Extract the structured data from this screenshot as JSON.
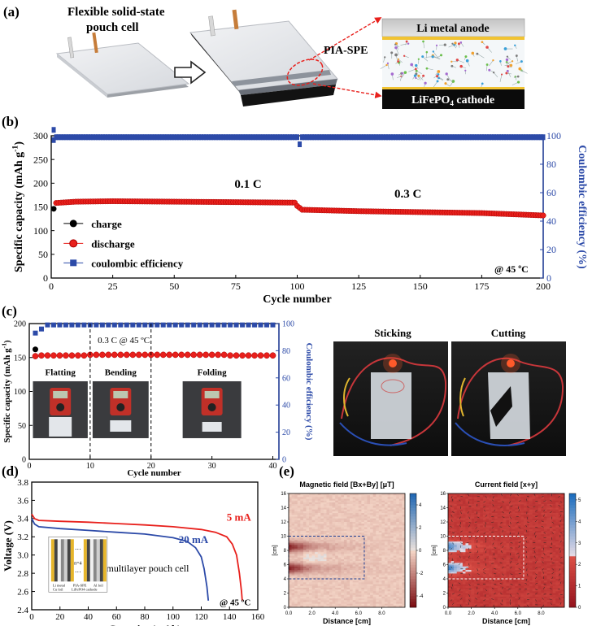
{
  "panel_labels": {
    "a": "(a)",
    "b": "(b)",
    "c": "(c)",
    "d": "(d)",
    "e": "(e)"
  },
  "panel_a": {
    "cell_label_line1": "Flexible solid-state",
    "cell_label_line2": "pouch cell",
    "pia_spe": "PIA-SPE",
    "anode": "Li metal anode",
    "cathode_prefix": "LiFePO",
    "cathode_sub": "4",
    "cathode_suffix": " cathode"
  },
  "panel_c_photos": {
    "sticking": "Sticking",
    "cutting": "Cutting"
  },
  "chart_data": [
    {
      "id": "b",
      "type": "line",
      "xlabel": "Cycle number",
      "ylabel": "Specific capacity (mAh g",
      "ylabel_sup": "-1",
      "ylabel_end": ")",
      "y2label": "Coulombic efficiency (%)",
      "xlim": [
        0,
        200
      ],
      "ylim": [
        0,
        300
      ],
      "y2lim": [
        0,
        100
      ],
      "xticks": [
        0,
        25,
        50,
        75,
        100,
        125,
        150,
        175,
        200
      ],
      "yticks": [
        0,
        50,
        100,
        150,
        200,
        250,
        300
      ],
      "y2ticks": [
        0,
        20,
        40,
        60,
        80,
        100
      ],
      "legend": [
        "charge",
        "discharge",
        "coulombic efficiency"
      ],
      "annotations": [
        "0.1 C",
        "0.3 C",
        "@ 45 ºC"
      ],
      "series": [
        {
          "name": "charge",
          "color": "#000000",
          "x": [
            1
          ],
          "y": [
            146
          ]
        },
        {
          "name": "discharge",
          "color": "#e8201c",
          "x": [
            1,
            10,
            25,
            50,
            75,
            99,
            100,
            102,
            125,
            150,
            175,
            200
          ],
          "y": [
            158,
            161,
            162,
            161,
            160,
            159,
            152,
            144,
            141,
            139,
            137,
            132
          ]
        },
        {
          "name": "coulombic efficiency",
          "color": "#2c4aa8",
          "x": [
            1,
            2,
            5,
            50,
            100,
            101,
            102,
            150,
            200
          ],
          "y2": [
            97,
            99,
            99,
            99,
            99,
            94,
            99,
            99,
            99
          ]
        }
      ]
    },
    {
      "id": "c",
      "type": "scatter",
      "xlabel": "Cycle number",
      "ylabel": "Specific capacity (mAh g",
      "ylabel_sup": "-1",
      "ylabel_end": ")",
      "y2label": "Coulombic efficiency (%)",
      "xlim": [
        0,
        41
      ],
      "ylim": [
        0,
        200
      ],
      "y2lim": [
        0,
        100
      ],
      "xticks": [
        0,
        10,
        20,
        30,
        40
      ],
      "yticks": [
        0,
        50,
        100,
        150,
        200
      ],
      "y2ticks": [
        0,
        20,
        40,
        60,
        80,
        100
      ],
      "annotations": [
        "0.3 C @ 45 ºC",
        "Flatting",
        "Bending",
        "Folding"
      ],
      "dividers": [
        10,
        20
      ],
      "series": [
        {
          "name": "charge",
          "color": "#000000",
          "x": [
            1
          ],
          "y": [
            162
          ]
        },
        {
          "name": "discharge",
          "color": "#e8201c",
          "x": [
            1,
            2,
            3,
            4,
            5,
            6,
            7,
            8,
            9,
            10,
            11,
            12,
            13,
            14,
            15,
            16,
            17,
            18,
            19,
            20,
            21,
            22,
            23,
            24,
            25,
            26,
            27,
            28,
            29,
            30,
            31,
            32,
            33,
            34,
            35,
            36,
            37,
            38,
            39,
            40
          ],
          "y": [
            152,
            153,
            153,
            153,
            153,
            153,
            153,
            153,
            153,
            154,
            154,
            154,
            154,
            154,
            154,
            154,
            154,
            154,
            154,
            154,
            154,
            154,
            154,
            154,
            154,
            154,
            154,
            154,
            154,
            154,
            154,
            154,
            153,
            153,
            153,
            153,
            153,
            153,
            153,
            153
          ]
        },
        {
          "name": "coulombic efficiency",
          "color": "#2c4aa8",
          "x": [
            1,
            2,
            3,
            4,
            5,
            6,
            7,
            8,
            9,
            10,
            11,
            12,
            13,
            14,
            15,
            16,
            17,
            18,
            19,
            20,
            21,
            22,
            23,
            24,
            25,
            26,
            27,
            28,
            29,
            30,
            31,
            32,
            33,
            34,
            35,
            36,
            37,
            38,
            39,
            40
          ],
          "y2": [
            93,
            96,
            99,
            99,
            99,
            99,
            99,
            99,
            99,
            99,
            99,
            99,
            99,
            99,
            99,
            99,
            99,
            99,
            99,
            99,
            99,
            99,
            99,
            99,
            99,
            99,
            99,
            99,
            99,
            99,
            99,
            99,
            99,
            99,
            99,
            99,
            99,
            99,
            99,
            99
          ]
        }
      ]
    },
    {
      "id": "d",
      "type": "line",
      "xlabel": "Capacity (mAh)",
      "ylabel": "Voltage (V)",
      "xlim": [
        0,
        160
      ],
      "ylim": [
        2.4,
        3.8
      ],
      "xticks": [
        0,
        20,
        40,
        60,
        80,
        100,
        120,
        140,
        160
      ],
      "yticks": [
        2.4,
        2.6,
        2.8,
        3.0,
        3.2,
        3.4,
        3.6,
        3.8
      ],
      "annotations": [
        "multilayer pouch cell",
        "@ 45 ºC",
        "n=4",
        "Li metal",
        "Cu foil",
        "PIA-SPE",
        "LiFePO4 cathode",
        "Al foil"
      ],
      "series": [
        {
          "name": "5 mA",
          "color": "#e8201c",
          "x": [
            0,
            2,
            5,
            20,
            40,
            60,
            80,
            100,
            120,
            130,
            138,
            142,
            145,
            147,
            148.5,
            149
          ],
          "y": [
            3.45,
            3.4,
            3.38,
            3.37,
            3.36,
            3.345,
            3.33,
            3.31,
            3.28,
            3.25,
            3.2,
            3.12,
            3.0,
            2.8,
            2.6,
            2.5
          ]
        },
        {
          "name": "20 mA",
          "color": "#2c4aa8",
          "x": [
            0,
            2,
            5,
            20,
            40,
            60,
            80,
            100,
            110,
            116,
            120,
            122,
            124,
            125
          ],
          "y": [
            3.4,
            3.34,
            3.31,
            3.29,
            3.27,
            3.25,
            3.23,
            3.19,
            3.15,
            3.08,
            2.98,
            2.85,
            2.65,
            2.5
          ]
        }
      ]
    },
    {
      "id": "e1",
      "type": "heatmap",
      "title": "Magnetic field [Bx+By] [μT]",
      "xlabel": "Distance [cm]",
      "ylabel": "[cm]",
      "xlim": [
        0,
        10
      ],
      "ylim": [
        0,
        16
      ],
      "xticks": [
        0.0,
        2.0,
        4.0,
        6.0,
        8.0
      ],
      "yticks": [
        0,
        2,
        4,
        6,
        8,
        10,
        12,
        14,
        16
      ],
      "colorbar_ticks": [
        -4,
        -2,
        0,
        2,
        4
      ],
      "colorbar_lim": [
        -5,
        5
      ],
      "hot_rows": [
        5.5,
        8.5
      ],
      "box": [
        0,
        4,
        6.5,
        10
      ]
    },
    {
      "id": "e2",
      "type": "heatmap",
      "title": "Current field [x+y]",
      "xlabel": "Distance [cm]",
      "ylabel": "[cm]",
      "xlim": [
        0,
        10
      ],
      "ylim": [
        0,
        16
      ],
      "xticks": [
        0.0,
        2.0,
        4.0,
        6.0,
        8.0
      ],
      "yticks": [
        0,
        2,
        4,
        6,
        8,
        10,
        12,
        14,
        16
      ],
      "colorbar_ticks": [
        0,
        1,
        2,
        3,
        4,
        5
      ],
      "colorbar_lim": [
        0,
        5.3
      ],
      "hot_rows": [
        5.5,
        8.5
      ],
      "box": [
        0,
        4,
        6.5,
        10
      ]
    }
  ],
  "colors": {
    "red": "#e8201c",
    "blue": "#2c4aa8",
    "black": "#000000"
  }
}
